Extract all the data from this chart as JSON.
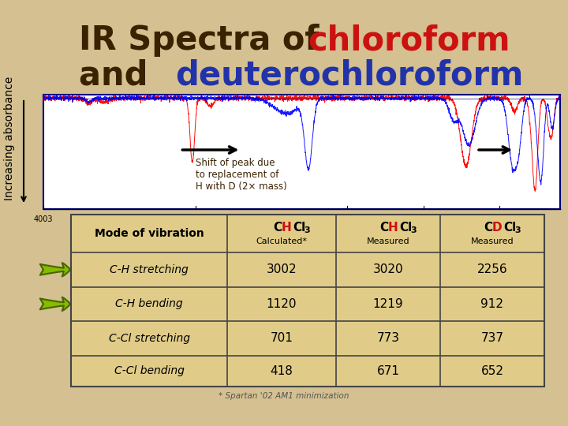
{
  "bg_color": "#d4c090",
  "title_fontsize": 30,
  "ylabel_fontsize": 10,
  "table_data": [
    [
      "C-H stretching",
      "3002",
      "3020",
      "2256"
    ],
    [
      "C-H bending",
      "1120",
      "1219",
      "912"
    ],
    [
      "C-Cl stretching",
      "701",
      "773",
      "737"
    ],
    [
      "C-Cl bending",
      "418",
      "671",
      "652"
    ]
  ],
  "table_bg": "#e0cc88",
  "table_border": "#444444",
  "footnote": "* Spartan '02 AM1 minimization",
  "green_arrow_color": "#88bb00",
  "red_color": "#cc1111",
  "blue_color": "#2233aa",
  "dark_color": "#3a2200",
  "arrow_text": "Shift of peak due\nto replacement of\nH with D (2× mass)"
}
